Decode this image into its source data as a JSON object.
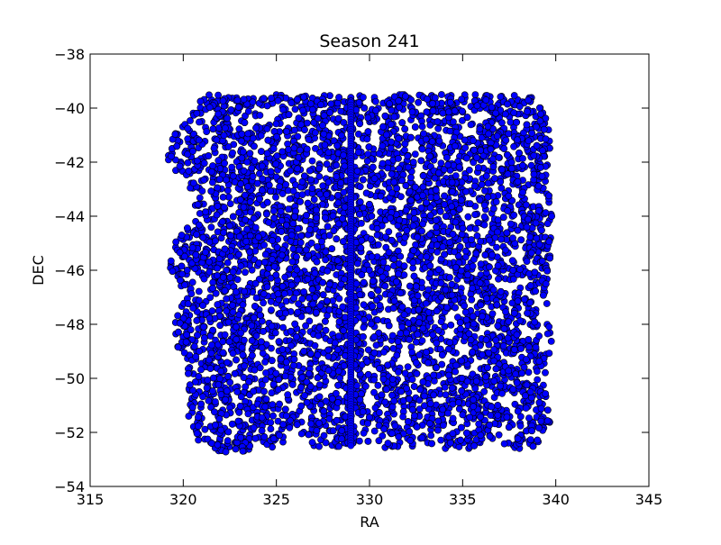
{
  "chart_data": {
    "type": "scatter",
    "title": "Season 241",
    "xlabel": "RA",
    "ylabel": "DEC",
    "xlim": [
      315,
      345
    ],
    "ylim": [
      -54,
      -38
    ],
    "xticks": [
      315,
      320,
      325,
      330,
      335,
      340,
      345
    ],
    "yticks": [
      -54,
      -52,
      -50,
      -48,
      -46,
      -44,
      -42,
      -40,
      -38
    ],
    "grid": false,
    "legend": "none",
    "marker_color": "#0000ff",
    "marker_edge_color": "#000000",
    "series": [
      {
        "marker": "circle",
        "footprint": {
          "ra_min": 319.0,
          "ra_max": 340.0,
          "dec_min": -52.8,
          "dec_max": -39.5,
          "left_edge_dec_ra": [
            [
              -39.5,
              321.0
            ],
            [
              -40.3,
              320.3
            ],
            [
              -41.0,
              319.5
            ],
            [
              -41.8,
              319.0
            ],
            [
              -42.5,
              319.8
            ],
            [
              -43.2,
              320.5
            ],
            [
              -44.0,
              320.8
            ],
            [
              -44.6,
              320.0
            ],
            [
              -45.5,
              319.0
            ],
            [
              -46.2,
              319.5
            ],
            [
              -47.0,
              320.2
            ],
            [
              -47.8,
              319.5
            ],
            [
              -48.7,
              319.5
            ],
            [
              -49.4,
              320.3
            ],
            [
              -50.5,
              320.0
            ],
            [
              -51.5,
              320.3
            ],
            [
              -52.3,
              320.8
            ],
            [
              -52.6,
              321.5
            ]
          ],
          "right_edge_dec_ra": [
            [
              -39.5,
              339.0
            ],
            [
              -41.0,
              339.8
            ],
            [
              -42.5,
              339.5
            ],
            [
              -44.0,
              339.8
            ],
            [
              -45.5,
              339.8
            ],
            [
              -47.0,
              339.5
            ],
            [
              -48.5,
              339.8
            ],
            [
              -50.0,
              339.5
            ],
            [
              -51.5,
              339.8
            ],
            [
              -52.6,
              339.0
            ]
          ],
          "bottom_edge_ra_dec": [
            [
              321.5,
              -52.6
            ],
            [
              322.5,
              -52.8
            ],
            [
              323.2,
              -52.8
            ],
            [
              324.0,
              -52.4
            ],
            [
              325.0,
              -52.6
            ],
            [
              326.0,
              -52.0
            ],
            [
              327.0,
              -52.5
            ],
            [
              328.0,
              -52.6
            ],
            [
              329.5,
              -52.4
            ],
            [
              331.0,
              -52.6
            ],
            [
              332.5,
              -52.5
            ],
            [
              334.0,
              -52.6
            ],
            [
              335.5,
              -52.6
            ],
            [
              336.5,
              -52.2
            ],
            [
              337.5,
              -52.6
            ],
            [
              339.0,
              -52.6
            ]
          ],
          "column_ra": 329.0,
          "column_dec_range": [
            -52.5,
            -39.8
          ]
        }
      }
    ]
  }
}
